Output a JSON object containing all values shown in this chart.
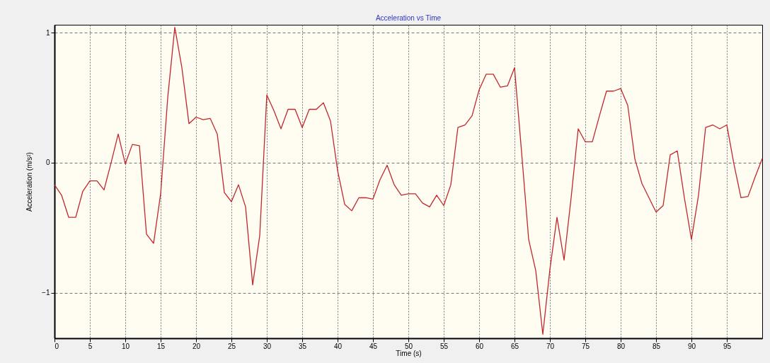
{
  "chart_data": {
    "type": "line",
    "title": "Acceleration vs Time",
    "xlabel": "Time (s)",
    "ylabel": "Acceleration (m/s²)",
    "x": [
      0,
      1,
      2,
      3,
      4,
      5,
      6,
      7,
      8,
      9,
      10,
      11,
      12,
      13,
      14,
      15,
      16,
      17,
      18,
      19,
      20,
      21,
      22,
      23,
      24,
      25,
      26,
      27,
      28,
      29,
      30,
      31,
      32,
      33,
      34,
      35,
      36,
      37,
      38,
      39,
      40,
      41,
      42,
      43,
      44,
      45,
      46,
      47,
      48,
      49,
      50,
      51,
      52,
      53,
      54,
      55,
      56,
      57,
      58,
      59,
      60,
      61,
      62,
      63,
      64,
      65,
      66,
      67,
      68,
      69,
      70,
      71,
      72,
      73,
      74,
      75,
      76,
      77,
      78,
      79,
      80,
      81,
      82,
      83,
      84,
      85,
      86,
      87,
      88,
      89,
      90,
      91,
      92,
      93,
      94,
      95,
      96,
      97,
      98,
      99,
      100
    ],
    "series": [
      {
        "color": "#c0282d",
        "values": [
          -0.17,
          -0.25,
          -0.42,
          -0.42,
          -0.22,
          -0.14,
          -0.14,
          -0.21,
          0.0,
          0.22,
          -0.01,
          0.14,
          0.13,
          -0.55,
          -0.62,
          -0.24,
          0.5,
          1.04,
          0.73,
          0.3,
          0.35,
          0.33,
          0.34,
          0.22,
          -0.23,
          -0.3,
          -0.17,
          -0.34,
          -0.94,
          -0.56,
          0.52,
          0.4,
          0.26,
          0.41,
          0.41,
          0.27,
          0.41,
          0.41,
          0.46,
          0.32,
          -0.06,
          -0.32,
          -0.37,
          -0.27,
          -0.27,
          -0.28,
          -0.13,
          -0.02,
          -0.17,
          -0.25,
          -0.24,
          -0.24,
          -0.31,
          -0.34,
          -0.25,
          -0.33,
          -0.17,
          0.27,
          0.29,
          0.36,
          0.56,
          0.68,
          0.68,
          0.58,
          0.59,
          0.73,
          0.08,
          -0.59,
          -0.83,
          -1.32,
          -0.82,
          -0.42,
          -0.75,
          -0.27,
          0.26,
          0.16,
          0.16,
          0.36,
          0.55,
          0.55,
          0.57,
          0.44,
          0.03,
          -0.16,
          -0.27,
          -0.38,
          -0.33,
          0.06,
          0.09,
          -0.27,
          -0.59,
          -0.25,
          0.27,
          0.29,
          0.26,
          0.29,
          -0.01,
          -0.27,
          -0.26,
          -0.11,
          0.03
        ]
      }
    ],
    "xlim": [
      0,
      100
    ],
    "xticks": [
      0,
      5,
      10,
      15,
      20,
      25,
      30,
      35,
      40,
      45,
      50,
      55,
      60,
      65,
      70,
      75,
      80,
      85,
      90,
      95
    ],
    "ylim": [
      -1.35,
      1.06
    ],
    "yticks": [
      -1,
      0,
      1
    ],
    "grid": true,
    "legend": false,
    "marker": "none",
    "line_style": "solid"
  }
}
